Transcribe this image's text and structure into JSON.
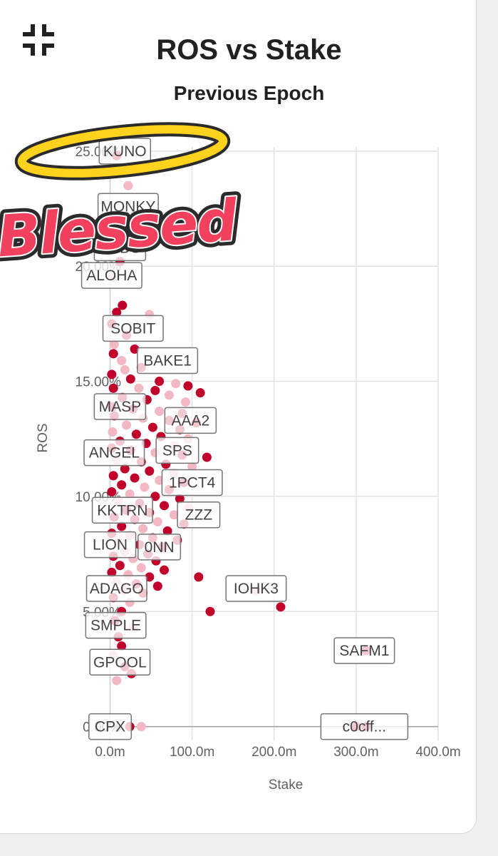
{
  "header": {
    "collapse_icon": "collapse-icon",
    "title": "ROS vs Stake",
    "subtitle": "Previous Epoch"
  },
  "sticker": {
    "text": "Blessed",
    "halo_icon": "halo-icon",
    "fill_color": "#f2415f",
    "halo_color": "#ffd21e"
  },
  "chart_data": {
    "type": "scatter",
    "xlabel": "Stake",
    "ylabel": "ROS",
    "xlim": [
      -30,
      400
    ],
    "ylim": [
      -0.6,
      25.8
    ],
    "x_ticks": [
      {
        "value": 0,
        "label": "0.0m"
      },
      {
        "value": 100,
        "label": "100.0m"
      },
      {
        "value": 200,
        "label": "200.0m"
      },
      {
        "value": 300,
        "label": "300.0m"
      },
      {
        "value": 400,
        "label": "400.0m"
      }
    ],
    "y_ticks": [
      {
        "value": 0,
        "label": "0.00%"
      },
      {
        "value": 5,
        "label": "5.00%"
      },
      {
        "value": 10,
        "label": "10.00%"
      },
      {
        "value": 15,
        "label": "15.00%"
      },
      {
        "value": 20,
        "label": "20.00%"
      },
      {
        "value": 25,
        "label": "25.00%"
      }
    ],
    "grid": true,
    "colors": {
      "point": "#c0002b",
      "point_faded": "#f2b8c4",
      "grid": "#e3e3e3"
    },
    "labeled_pools": [
      {
        "name": "KUNO",
        "x": 18,
        "y": 25.0
      },
      {
        "name": "MONKY",
        "x": 22,
        "y": 22.6
      },
      {
        "name": "TODS",
        "x": 12,
        "y": 20.8
      },
      {
        "name": "ALOHA",
        "x": 2,
        "y": 19.6
      },
      {
        "name": "SOBIT",
        "x": 28,
        "y": 17.3
      },
      {
        "name": "BAKE1",
        "x": 70,
        "y": 15.9
      },
      {
        "name": "MASP",
        "x": 12,
        "y": 13.9
      },
      {
        "name": "AAA2",
        "x": 98,
        "y": 13.3
      },
      {
        "name": "ANGEL",
        "x": 5,
        "y": 11.9
      },
      {
        "name": "SPS",
        "x": 82,
        "y": 12.0
      },
      {
        "name": "1PCT4",
        "x": 100,
        "y": 10.6
      },
      {
        "name": "KKTRN",
        "x": 15,
        "y": 9.4
      },
      {
        "name": "ZZZ",
        "x": 108,
        "y": 9.2
      },
      {
        "name": "LION",
        "x": 0,
        "y": 7.9
      },
      {
        "name": "0NN",
        "x": 60,
        "y": 7.8
      },
      {
        "name": "ADAGO",
        "x": 8,
        "y": 6.0
      },
      {
        "name": "IOHK3",
        "x": 178,
        "y": 6.0
      },
      {
        "name": "SMPLE",
        "x": 7,
        "y": 4.4
      },
      {
        "name": "GPOOL",
        "x": 12,
        "y": 2.8
      },
      {
        "name": "SAFM1",
        "x": 310,
        "y": 3.3
      },
      {
        "name": "CPX",
        "x": 0,
        "y": 0.0
      },
      {
        "name": "c0cff...",
        "x": 310,
        "y": 0.0
      }
    ],
    "points": [
      [
        8,
        24.8
      ],
      [
        22,
        23.5
      ],
      [
        5,
        21.0
      ],
      [
        12,
        20.2
      ],
      [
        3,
        19.5
      ],
      [
        15,
        18.3
      ],
      [
        8,
        18.0
      ],
      [
        48,
        17.9
      ],
      [
        2,
        17.5
      ],
      [
        20,
        17.0
      ],
      [
        5,
        16.6
      ],
      [
        30,
        16.4
      ],
      [
        4,
        16.2
      ],
      [
        14,
        15.9
      ],
      [
        38,
        15.6
      ],
      [
        2,
        15.3
      ],
      [
        18,
        15.5
      ],
      [
        25,
        15.1
      ],
      [
        60,
        15.0
      ],
      [
        80,
        14.9
      ],
      [
        95,
        14.8
      ],
      [
        4,
        14.7
      ],
      [
        35,
        14.7
      ],
      [
        55,
        14.6
      ],
      [
        110,
        14.5
      ],
      [
        72,
        14.4
      ],
      [
        15,
        14.3
      ],
      [
        45,
        14.2
      ],
      [
        92,
        14.1
      ],
      [
        2,
        13.9
      ],
      [
        28,
        13.8
      ],
      [
        60,
        13.7
      ],
      [
        88,
        13.6
      ],
      [
        5,
        13.5
      ],
      [
        40,
        13.4
      ],
      [
        72,
        13.3
      ],
      [
        105,
        13.2
      ],
      [
        20,
        13.1
      ],
      [
        52,
        13.0
      ],
      [
        85,
        12.9
      ],
      [
        3,
        12.8
      ],
      [
        32,
        12.7
      ],
      [
        62,
        12.6
      ],
      [
        95,
        12.5
      ],
      [
        12,
        12.4
      ],
      [
        44,
        12.3
      ],
      [
        78,
        12.2
      ],
      [
        2,
        12.1
      ],
      [
        25,
        12.0
      ],
      [
        55,
        11.9
      ],
      [
        88,
        11.8
      ],
      [
        118,
        11.7
      ],
      [
        8,
        11.6
      ],
      [
        38,
        11.5
      ],
      [
        68,
        11.4
      ],
      [
        100,
        11.3
      ],
      [
        18,
        11.2
      ],
      [
        48,
        11.1
      ],
      [
        78,
        11.0
      ],
      [
        4,
        10.9
      ],
      [
        30,
        10.8
      ],
      [
        60,
        10.7
      ],
      [
        90,
        10.6
      ],
      [
        14,
        10.5
      ],
      [
        42,
        10.4
      ],
      [
        72,
        10.3
      ],
      [
        2,
        10.2
      ],
      [
        24,
        10.1
      ],
      [
        55,
        10.0
      ],
      [
        85,
        9.9
      ],
      [
        10,
        9.8
      ],
      [
        36,
        9.7
      ],
      [
        66,
        9.6
      ],
      [
        96,
        9.5
      ],
      [
        20,
        9.4
      ],
      [
        48,
        9.3
      ],
      [
        78,
        9.2
      ],
      [
        5,
        9.1
      ],
      [
        30,
        9.0
      ],
      [
        58,
        8.9
      ],
      [
        90,
        8.8
      ],
      [
        14,
        8.7
      ],
      [
        40,
        8.6
      ],
      [
        70,
        8.5
      ],
      [
        2,
        8.4
      ],
      [
        24,
        8.3
      ],
      [
        52,
        8.2
      ],
      [
        82,
        8.1
      ],
      [
        10,
        8.0
      ],
      [
        36,
        7.9
      ],
      [
        64,
        7.8
      ],
      [
        18,
        7.6
      ],
      [
        46,
        7.5
      ],
      [
        4,
        7.4
      ],
      [
        28,
        7.3
      ],
      [
        56,
        7.2
      ],
      [
        12,
        7.0
      ],
      [
        38,
        6.9
      ],
      [
        66,
        6.8
      ],
      [
        2,
        6.7
      ],
      [
        22,
        6.6
      ],
      [
        48,
        6.5
      ],
      [
        108,
        6.5
      ],
      [
        8,
        6.3
      ],
      [
        32,
        6.2
      ],
      [
        58,
        6.1
      ],
      [
        16,
        5.9
      ],
      [
        40,
        5.8
      ],
      [
        4,
        5.6
      ],
      [
        24,
        5.4
      ],
      [
        122,
        5.0
      ],
      [
        208,
        5.2
      ],
      [
        178,
        5.9
      ],
      [
        14,
        5.0
      ],
      [
        6,
        4.6
      ],
      [
        28,
        4.3
      ],
      [
        10,
        3.9
      ],
      [
        14,
        3.5
      ],
      [
        4,
        3.1
      ],
      [
        18,
        2.6
      ],
      [
        26,
        2.3
      ],
      [
        8,
        2.0
      ],
      [
        312,
        3.3
      ],
      [
        24,
        0.0
      ],
      [
        38,
        0.0
      ],
      [
        300,
        0.0
      ],
      [
        312,
        0.0
      ]
    ]
  }
}
